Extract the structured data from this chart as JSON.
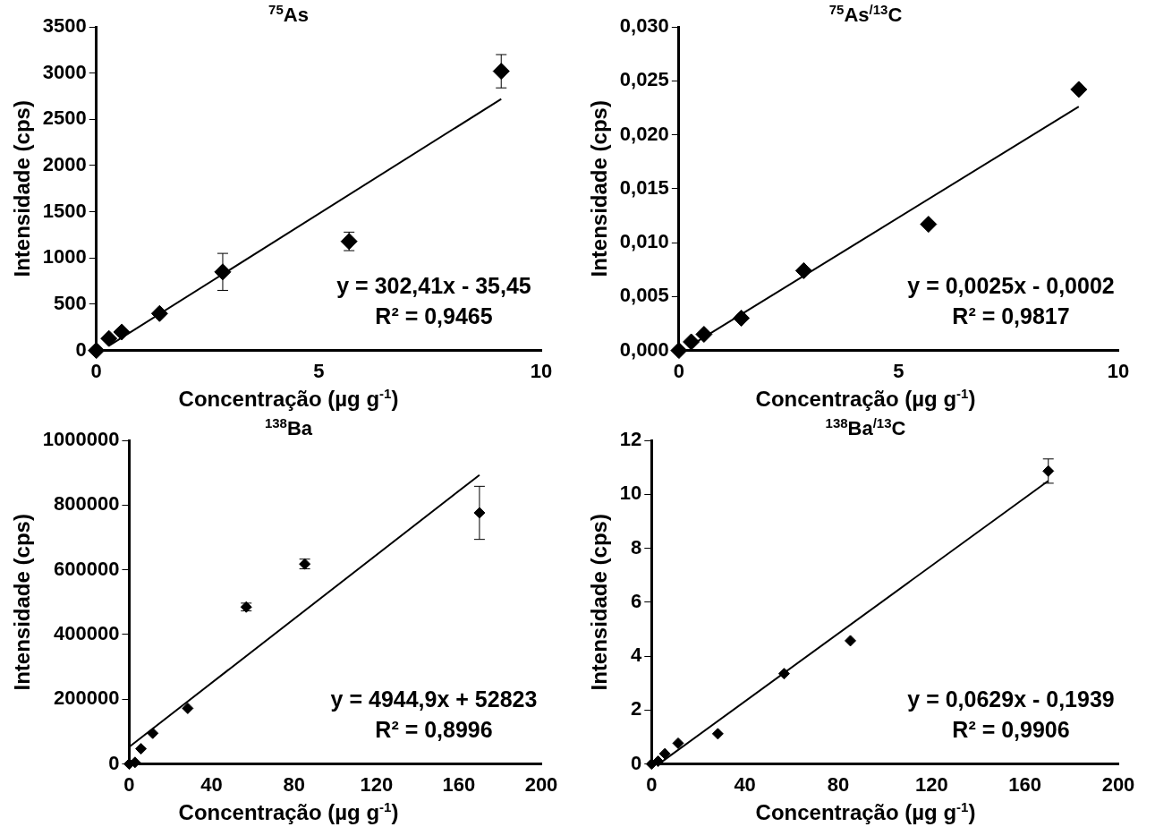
{
  "chart_data": [
    {
      "type": "scatter",
      "title": "$^{75}$As",
      "xlabel": "Concentração (µg g$^{-1}$)",
      "ylabel": "Intensidade (cps)",
      "marker": "diamond",
      "xlim": [
        0,
        10
      ],
      "xticks": [
        0,
        5,
        10
      ],
      "ylim": [
        0,
        3500
      ],
      "yticks": [
        0,
        500,
        1000,
        1500,
        2000,
        2500,
        3000,
        3500
      ],
      "annotations": [
        "y = 302,41x - 35,45",
        "R² = 0,9465"
      ],
      "series": [
        {
          "color": "#000000",
          "x": [
            0,
            0.28,
            0.57,
            1.42,
            2.84,
            5.68,
            9.1
          ],
          "values": [
            0,
            130,
            200,
            400,
            850,
            1180,
            3020
          ],
          "errors": [
            null,
            null,
            null,
            null,
            200,
            100,
            180
          ]
        },
        {
          "type": "line",
          "color": "#000000",
          "marker": "none",
          "x": [
            0.28,
            9.1
          ],
          "values": [
            50,
            2720
          ]
        }
      ]
    },
    {
      "type": "scatter",
      "title": "$^{75}$As$^{/13}$C",
      "xlabel": "Concentração (µg g$^{-1}$)",
      "ylabel": "Intensidade (cps)",
      "marker": "diamond",
      "xlim": [
        0,
        10
      ],
      "xticks": [
        0,
        5,
        10
      ],
      "ylim": [
        0,
        0.03
      ],
      "yticks": [
        {
          "value": 0,
          "label": "0,000"
        },
        {
          "value": 0.005,
          "label": "0,005"
        },
        {
          "value": 0.01,
          "label": "0,010"
        },
        {
          "value": 0.015,
          "label": "0,015"
        },
        {
          "value": 0.02,
          "label": "0,020"
        },
        {
          "value": 0.025,
          "label": "0,025"
        },
        {
          "value": 0.03,
          "label": "0,030"
        }
      ],
      "annotations": [
        "y = 0,0025x - 0,0002",
        "R² = 0,9817"
      ],
      "series": [
        {
          "color": "#000000",
          "x": [
            0,
            0.28,
            0.57,
            1.42,
            2.84,
            5.68,
            9.1
          ],
          "values": [
            0,
            0.0008,
            0.0015,
            0.003,
            0.0074,
            0.0117,
            0.0242
          ]
        },
        {
          "type": "line",
          "color": "#000000",
          "marker": "none",
          "x": [
            0.28,
            9.1
          ],
          "values": [
            0.0005,
            0.0226
          ]
        }
      ]
    },
    {
      "type": "scatter",
      "title": "$^{138}$Ba",
      "xlabel": "Concentração (µg g$^{-1}$)",
      "ylabel": "Intensidade (cps)",
      "marker": "diamond",
      "xlim": [
        0,
        200
      ],
      "xticks": [
        0,
        40,
        80,
        120,
        160,
        200
      ],
      "ylim": [
        0,
        1000000
      ],
      "yticks": [
        0,
        200000,
        400000,
        600000,
        800000,
        1000000
      ],
      "annotations": [
        "y = 4944,9x + 52823",
        "R² = 0,8996"
      ],
      "series": [
        {
          "color": "#000000",
          "x": [
            0,
            2.8,
            5.7,
            11.4,
            28.4,
            56.8,
            85.2,
            170
          ],
          "values": [
            0,
            5000,
            47000,
            95000,
            172000,
            485000,
            618000,
            776000
          ],
          "errors": [
            null,
            null,
            null,
            null,
            null,
            12000,
            15000,
            82000
          ]
        },
        {
          "type": "line",
          "color": "#000000",
          "marker": "none",
          "x": [
            0,
            170
          ],
          "values": [
            53000,
            893000
          ]
        }
      ]
    },
    {
      "type": "scatter",
      "title": "$^{138}$Ba$^{/13}$C",
      "xlabel": "Concentração (µg g$^{-1}$)",
      "ylabel": "Intensidade (cps)",
      "marker": "diamond",
      "xlim": [
        0,
        200
      ],
      "xticks": [
        0,
        40,
        80,
        120,
        160,
        200
      ],
      "ylim": [
        0,
        12
      ],
      "yticks": [
        0,
        2,
        4,
        6,
        8,
        10,
        12
      ],
      "annotations": [
        "y = 0,0629x - 0,1939",
        "R² = 0,9906"
      ],
      "series": [
        {
          "color": "#000000",
          "x": [
            0,
            2.8,
            5.7,
            11.4,
            28.4,
            56.8,
            85.2,
            170
          ],
          "values": [
            0,
            0.1,
            0.38,
            0.77,
            1.12,
            3.35,
            4.57,
            10.86
          ],
          "errors": [
            null,
            null,
            null,
            null,
            null,
            null,
            null,
            0.45
          ]
        },
        {
          "type": "line",
          "color": "#000000",
          "marker": "none",
          "x": [
            3.1,
            170
          ],
          "values": [
            0,
            10.5
          ]
        }
      ]
    }
  ]
}
